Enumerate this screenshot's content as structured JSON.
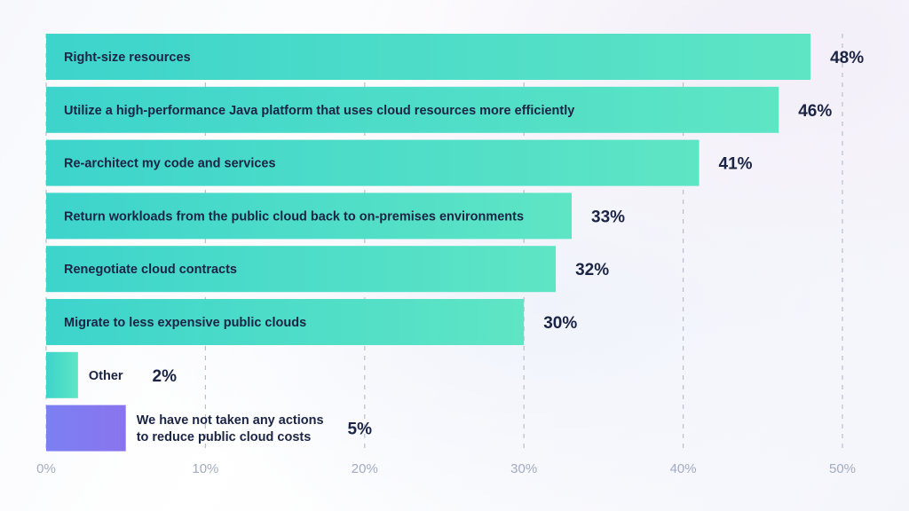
{
  "chart_data": {
    "type": "bar",
    "orientation": "horizontal",
    "categories": [
      "Right-size resources",
      "Utilize a high-performance Java platform that uses cloud resources more efficiently",
      "Re-architect my code and services",
      "Return workloads from the public cloud back to on-premises environments",
      "Renegotiate cloud contracts",
      "Migrate to less expensive public clouds",
      "Other",
      "We have not taken any actions to reduce public cloud costs"
    ],
    "label_lines": [
      [
        "Right-size resources"
      ],
      [
        "Utilize a high-performance Java platform that uses cloud resources more efficiently"
      ],
      [
        "Re-architect my code and services"
      ],
      [
        "Return workloads from the public cloud back to on-premises environments"
      ],
      [
        "Renegotiate cloud contracts"
      ],
      [
        "Migrate to less expensive public clouds"
      ],
      [
        "Other"
      ],
      [
        "We have not taken any actions",
        "to reduce public cloud costs"
      ]
    ],
    "values": [
      48,
      46,
      41,
      33,
      32,
      30,
      2,
      5
    ],
    "value_labels": [
      "48%",
      "46%",
      "41%",
      "33%",
      "32%",
      "30%",
      "2%",
      "5%"
    ],
    "label_inside": [
      true,
      true,
      true,
      true,
      true,
      true,
      false,
      false
    ],
    "bar_colors": [
      "teal",
      "teal",
      "teal",
      "teal",
      "teal",
      "teal",
      "teal",
      "purple"
    ],
    "xlim": [
      0,
      50
    ],
    "xticks": [
      0,
      10,
      20,
      30,
      40,
      50
    ],
    "xtick_labels": [
      "0%",
      "10%",
      "20%",
      "30%",
      "40%",
      "50%"
    ],
    "grid": "vertical-dashed",
    "title": "",
    "xlabel": "",
    "ylabel": ""
  },
  "colors": {
    "teal_start": "#3dd4cc",
    "teal_end": "#5ee5c4",
    "purple_start": "#7b80f2",
    "purple_end": "#8a74ee",
    "text": "#1b2444",
    "tick": "#a3abc2",
    "grid": "#b9bfcc"
  }
}
